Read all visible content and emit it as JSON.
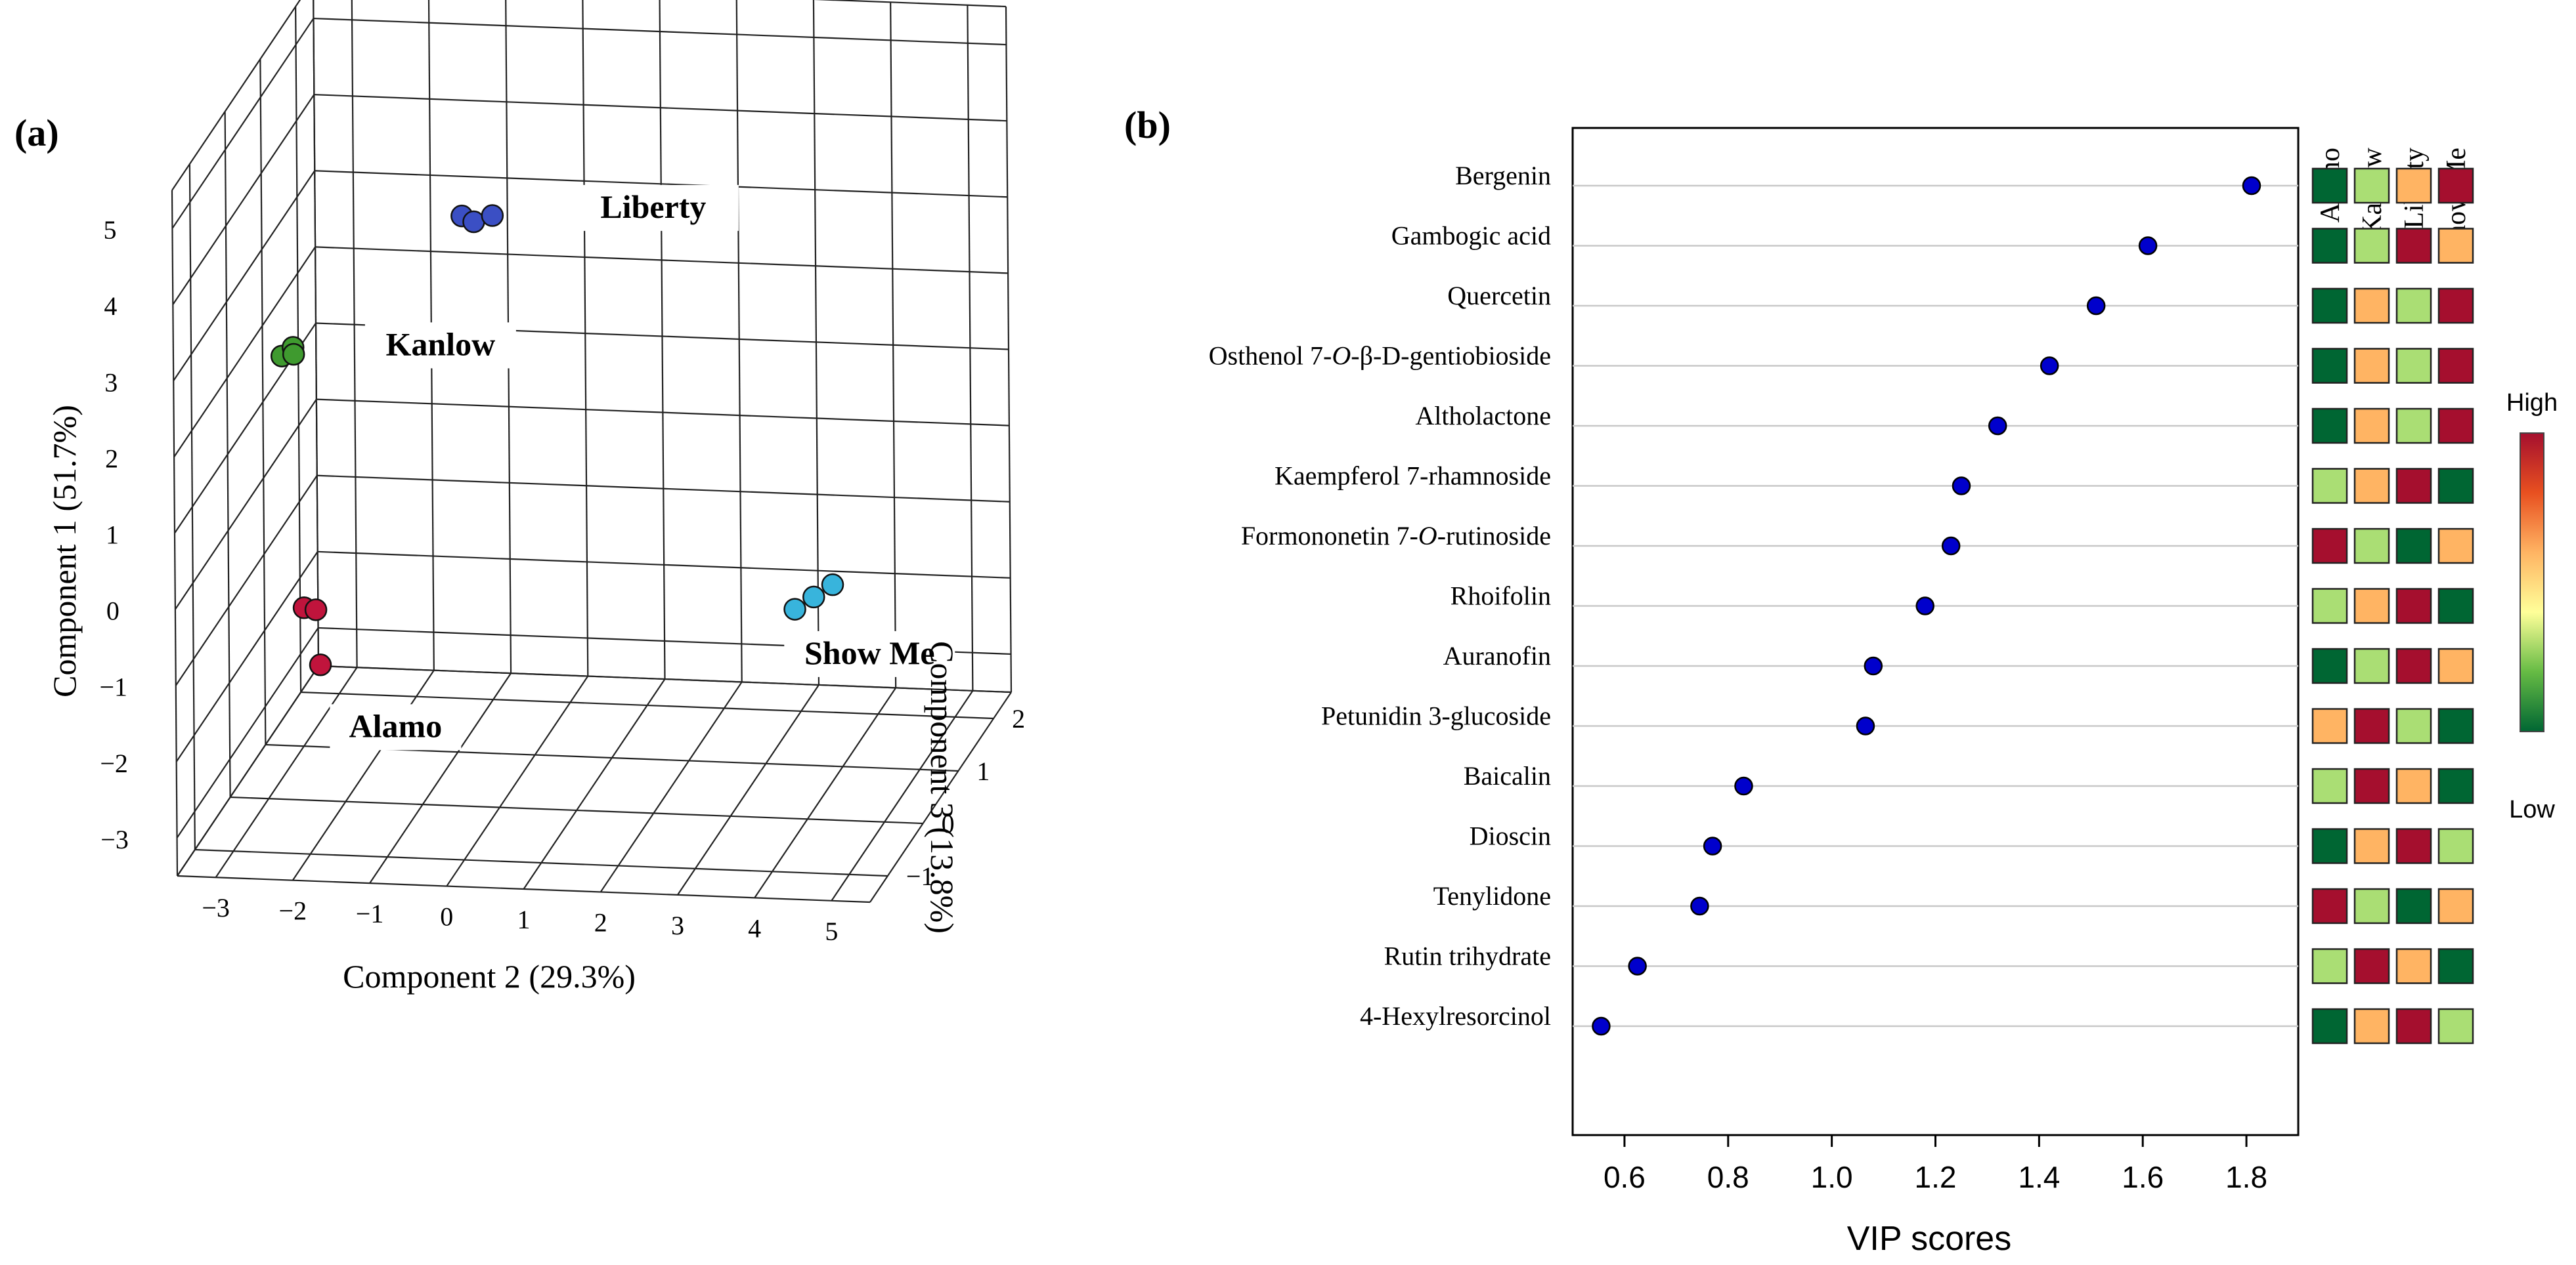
{
  "panel_a": {
    "label": "(a)",
    "chart_data": {
      "type": "scatter",
      "dimensions": 3,
      "axes": {
        "vertical": {
          "label": "Component 1 (51.7%)",
          "ticks": [
            -3,
            -2,
            -1,
            0,
            1,
            2,
            3,
            4,
            5
          ]
        },
        "horizontal": {
          "label": "Component 2 (29.3%)",
          "ticks": [
            -3,
            -2,
            -1,
            0,
            1,
            2,
            3,
            4,
            5
          ]
        },
        "depth": {
          "label": "Component 3 (13.8%)",
          "ticks": [
            -1,
            0,
            1,
            2
          ]
        }
      },
      "groups": [
        {
          "name": "Liberty",
          "color": "#3b4fc4",
          "points": [
            [
              -0.2,
              4.6,
              -0.5
            ],
            [
              0.0,
              4.6,
              -0.6
            ],
            [
              0.15,
              4.55,
              -0.4
            ]
          ]
        },
        {
          "name": "Kanlow",
          "color": "#3f9a2f",
          "points": [
            [
              -2.6,
              2.6,
              -0.4
            ],
            [
              -2.5,
              2.65,
              -0.3
            ],
            [
              -2.4,
              2.7,
              -0.5
            ]
          ]
        },
        {
          "name": "Alamo",
          "color": "#c0143c",
          "points": [
            [
              -2.8,
              -1.4,
              0.6
            ],
            [
              -2.6,
              -1.35,
              0.5
            ],
            [
              -2.5,
              -2.0,
              0.4
            ]
          ]
        },
        {
          "name": "Show Me",
          "color": "#38b4dc",
          "points": [
            [
              3.3,
              -1.6,
              1.2
            ],
            [
              3.5,
              -1.5,
              1.3
            ],
            [
              3.7,
              -1.4,
              1.4
            ]
          ]
        }
      ]
    }
  },
  "panel_b": {
    "label": "(b)",
    "chart_data": {
      "type": "scatter",
      "orientation": "horizontal",
      "xlabel": "VIP scores",
      "xlim": [
        0.5,
        1.9
      ],
      "xticks": [
        0.6,
        0.8,
        1.0,
        1.2,
        1.4,
        1.6,
        1.8
      ],
      "xtick_labels": [
        "0.6",
        "0.8",
        "1.0",
        "1.2",
        "1.4",
        "1.6",
        "1.8"
      ],
      "point_color": "#0000cc",
      "compounds": [
        {
          "name": "Bergenin",
          "vip": 1.81
        },
        {
          "name": "Gambogic acid",
          "vip": 1.61
        },
        {
          "name": "Quercetin",
          "vip": 1.51
        },
        {
          "name": "Osthenol 7-",
          "name_italic": "O",
          "name_rest": "-β-D-gentiobioside",
          "vip": 1.42
        },
        {
          "name": "Altholactone",
          "vip": 1.32
        },
        {
          "name": "Kaempferol 7-rhamnoside",
          "vip": 1.25
        },
        {
          "name": "Formononetin 7-",
          "name_italic": "O",
          "name_rest": "-rutinoside",
          "vip": 1.23
        },
        {
          "name": "Rhoifolin",
          "vip": 1.18
        },
        {
          "name": "Auranofin",
          "vip": 1.08
        },
        {
          "name": "Petunidin 3-glucoside",
          "vip": 1.065
        },
        {
          "name": "Baicalin",
          "vip": 0.83
        },
        {
          "name": "Dioscin",
          "vip": 0.77
        },
        {
          "name": "Tenylidone",
          "vip": 0.745
        },
        {
          "name": "Rutin trihydrate",
          "vip": 0.625
        },
        {
          "name": "4-Hexylresorcinol",
          "vip": 0.555
        }
      ],
      "heatmap": {
        "columns": [
          "Alamo",
          "Kanlow",
          "Liberty",
          "Show Me"
        ],
        "levels": {
          "1": "#006633",
          "2": "#aade74",
          "3": "#ffb463",
          "4": "#a50f2e"
        },
        "rows": [
          [
            1,
            2,
            3,
            4
          ],
          [
            1,
            2,
            4,
            3
          ],
          [
            1,
            3,
            2,
            4
          ],
          [
            1,
            3,
            2,
            4
          ],
          [
            1,
            3,
            2,
            4
          ],
          [
            2,
            3,
            4,
            1
          ],
          [
            4,
            2,
            1,
            3
          ],
          [
            2,
            3,
            4,
            1
          ],
          [
            1,
            2,
            4,
            3
          ],
          [
            3,
            4,
            2,
            1
          ],
          [
            2,
            4,
            3,
            1
          ],
          [
            1,
            3,
            4,
            2
          ],
          [
            4,
            2,
            1,
            3
          ],
          [
            2,
            4,
            3,
            1
          ],
          [
            1,
            3,
            4,
            2
          ]
        ]
      },
      "colorbar": {
        "high_label": "High",
        "low_label": "Low",
        "colors": [
          "#006633",
          "#66bb44",
          "#ffff99",
          "#ffb463",
          "#e85020",
          "#a50f2e"
        ]
      }
    }
  }
}
